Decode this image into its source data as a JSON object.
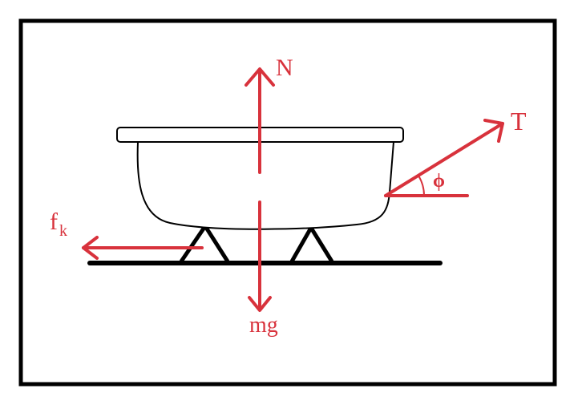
{
  "labels": {
    "normal_force": "N",
    "tension": "T",
    "angle": "ϕ",
    "weight": "mg",
    "friction_main": "f",
    "friction_sub": "k"
  },
  "colors": {
    "force": "#d8323c",
    "outline": "#000000",
    "background": "#ffffff"
  }
}
